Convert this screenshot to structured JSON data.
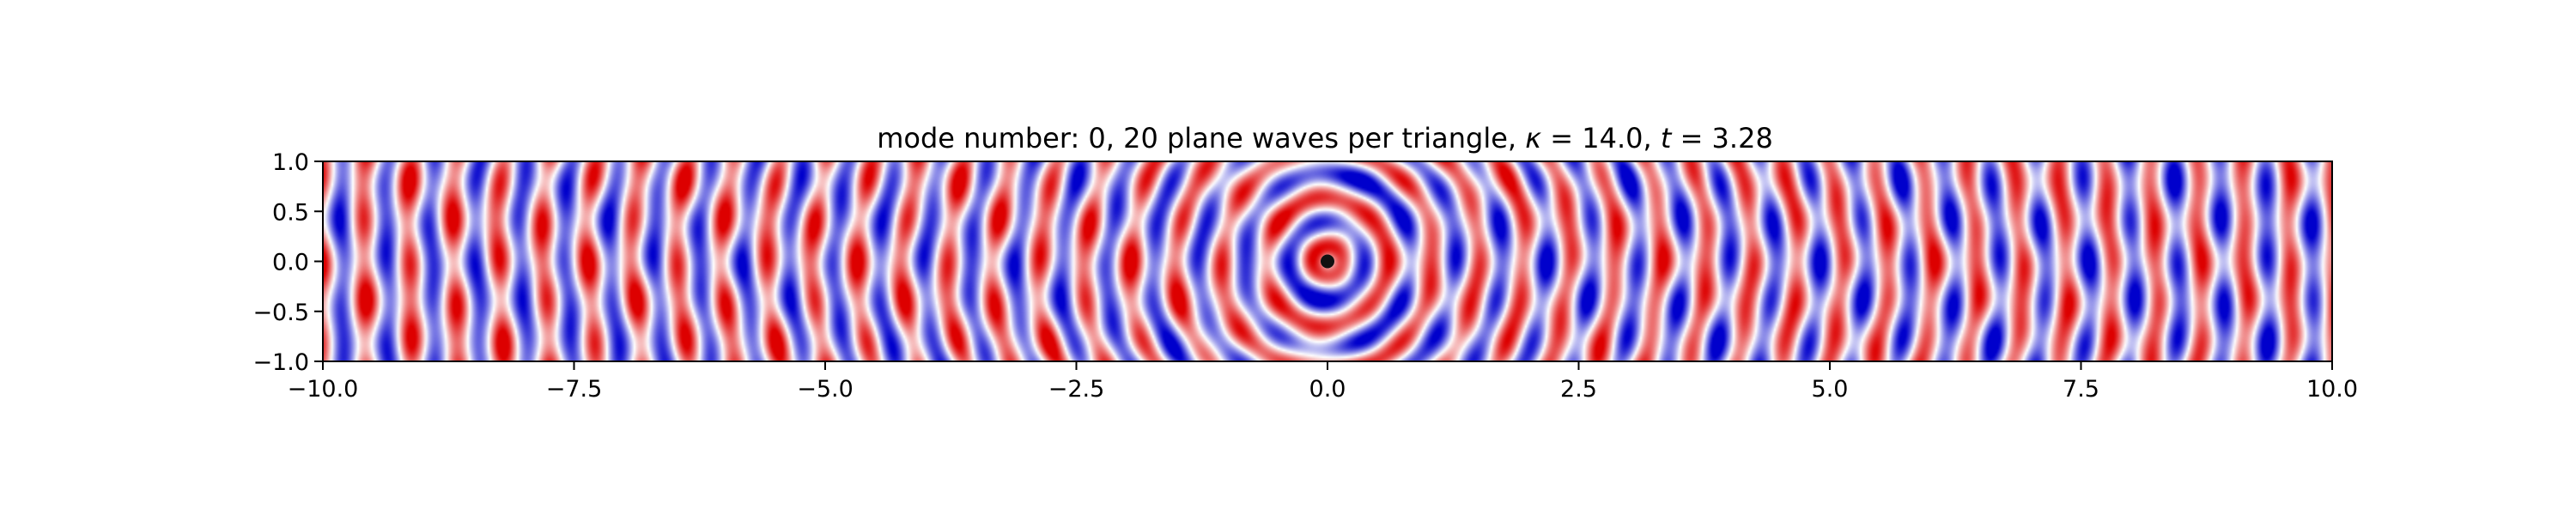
{
  "chart_data": {
    "type": "heatmap",
    "title_parts": {
      "prefix": "mode number: 0, 20 plane waves per triangle, ",
      "kappa_symbol": "κ",
      "kappa_eq": " = 14.0, ",
      "t_symbol": "t",
      "t_eq": " = 3.28"
    },
    "xlabel": "",
    "ylabel": "",
    "xlim": [
      -10.0,
      10.0
    ],
    "ylim": [
      -1.0,
      1.0
    ],
    "x_ticks": [
      {
        "value": -10.0,
        "label": "−10.0"
      },
      {
        "value": -7.5,
        "label": "−7.5"
      },
      {
        "value": -5.0,
        "label": "−5.0"
      },
      {
        "value": -2.5,
        "label": "−2.5"
      },
      {
        "value": 0.0,
        "label": "0.0"
      },
      {
        "value": 2.5,
        "label": "2.5"
      },
      {
        "value": 5.0,
        "label": "5.0"
      },
      {
        "value": 7.5,
        "label": "7.5"
      },
      {
        "value": 10.0,
        "label": "10.0"
      }
    ],
    "y_ticks": [
      {
        "value": 1.0,
        "label": "1.0"
      },
      {
        "value": 0.5,
        "label": "0.5"
      },
      {
        "value": 0.0,
        "label": "0.0"
      },
      {
        "value": -0.5,
        "label": "−0.5"
      },
      {
        "value": -1.0,
        "label": "−1.0"
      }
    ],
    "colormap": {
      "negative": "#0000cc",
      "zero": "#ffffff",
      "positive": "#dd0000"
    },
    "kappa": 14.0,
    "t": 3.28,
    "source_point": {
      "x": 0.0,
      "y": 0.0
    },
    "grid": false
  }
}
